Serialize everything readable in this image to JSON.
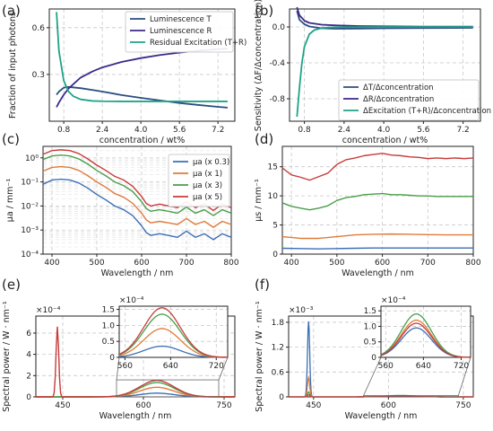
{
  "figure": {
    "panels": [
      "(a)",
      "(b)",
      "(c)",
      "(d)",
      "(e)",
      "(f)"
    ]
  },
  "chart_data": [
    {
      "id": "a",
      "type": "line",
      "xlabel": "concentration / wt%",
      "ylabel": "Fraction of input photons",
      "xlim": [
        0.2,
        7.9
      ],
      "ylim": [
        0,
        0.72
      ],
      "xticks": [
        "0.8",
        "2.4",
        "4.0",
        "5.6",
        "7.2"
      ],
      "yticks": [
        "0.3",
        "0.6"
      ],
      "grid": true,
      "legend": "top-right",
      "series": [
        {
          "name": "Luminescence T",
          "color": "#2a4e80",
          "x": [
            0.5,
            0.6,
            0.8,
            1.0,
            1.5,
            2.0,
            2.4,
            3.2,
            4.0,
            4.8,
            5.6,
            6.4,
            7.2,
            7.6
          ],
          "y": [
            0.17,
            0.19,
            0.215,
            0.22,
            0.212,
            0.2,
            0.19,
            0.168,
            0.15,
            0.133,
            0.117,
            0.104,
            0.092,
            0.087
          ]
        },
        {
          "name": "Luminescence R",
          "color": "#3b2a8a",
          "x": [
            0.5,
            0.6,
            0.8,
            1.0,
            1.5,
            2.0,
            2.4,
            3.2,
            4.0,
            4.8,
            5.6,
            6.4,
            7.2,
            7.6
          ],
          "y": [
            0.09,
            0.12,
            0.17,
            0.21,
            0.28,
            0.32,
            0.345,
            0.38,
            0.405,
            0.425,
            0.44,
            0.452,
            0.462,
            0.466
          ]
        },
        {
          "name": "Residual Excitation (T+R)",
          "color": "#1fa386",
          "x": [
            0.5,
            0.6,
            0.8,
            1.0,
            1.2,
            1.5,
            2.0,
            2.4,
            3.2,
            4.0,
            5.6,
            7.2,
            7.6
          ],
          "y": [
            0.7,
            0.45,
            0.26,
            0.19,
            0.16,
            0.14,
            0.13,
            0.128,
            0.127,
            0.127,
            0.127,
            0.127,
            0.127
          ]
        }
      ]
    },
    {
      "id": "b",
      "type": "line",
      "xlabel": "concentration / wt%",
      "ylabel": "Sensitivity (ΔF/Δconcentration)",
      "xlim": [
        0.2,
        7.9
      ],
      "ylim": [
        -1.05,
        0.2
      ],
      "xticks": [
        "0.8",
        "2.4",
        "4.0",
        "5.6",
        "7.2"
      ],
      "yticks": [
        "-0.8",
        "-0.4",
        "0.0"
      ],
      "grid": true,
      "legend": "bottom-right",
      "series": [
        {
          "name": "ΔT/Δconcentration",
          "color": "#2a4e80",
          "x": [
            0.5,
            0.6,
            0.8,
            1.0,
            1.5,
            2.0,
            3.0,
            4.0,
            5.6,
            7.6
          ],
          "y": [
            0.18,
            0.08,
            0.03,
            0.005,
            -0.015,
            -0.02,
            -0.018,
            -0.015,
            -0.012,
            -0.01
          ]
        },
        {
          "name": "ΔR/Δconcentration",
          "color": "#3b2a8a",
          "x": [
            0.5,
            0.6,
            0.8,
            1.0,
            1.5,
            2.0,
            3.0,
            4.0,
            5.6,
            7.6
          ],
          "y": [
            0.22,
            0.13,
            0.07,
            0.045,
            0.025,
            0.018,
            0.01,
            0.007,
            0.004,
            0.003
          ]
        },
        {
          "name": "ΔExcitation (T+R)/Δconcentration",
          "color": "#1fa386",
          "x": [
            0.5,
            0.6,
            0.7,
            0.8,
            1.0,
            1.2,
            1.5,
            2.0,
            2.4,
            3.0,
            4.0,
            5.6,
            7.6
          ],
          "y": [
            -1.0,
            -0.68,
            -0.4,
            -0.22,
            -0.08,
            -0.035,
            -0.012,
            -0.004,
            -0.002,
            -0.001,
            0.0,
            0.0,
            0.0
          ]
        }
      ]
    },
    {
      "id": "c",
      "type": "line",
      "xlabel": "Wavelength / nm",
      "ylabel": "μa / mm⁻¹",
      "yscale": "log",
      "xlim": [
        380,
        800
      ],
      "ylim": [
        0.0001,
        3
      ],
      "xticks": [
        "400",
        "500",
        "600",
        "700",
        "800"
      ],
      "yticks": [
        "10⁻⁴",
        "10⁻³",
        "10⁻²",
        "10⁻¹",
        "10⁰"
      ],
      "grid": true,
      "legend": "top-right",
      "series": [
        {
          "name": "μa (x 0.3)",
          "color": "#3b6fb6",
          "x": [
            380,
            400,
            420,
            440,
            460,
            480,
            500,
            520,
            540,
            560,
            580,
            600,
            610,
            620,
            640,
            660,
            680,
            700,
            720,
            740,
            760,
            780,
            800
          ],
          "y": [
            0.08,
            0.12,
            0.13,
            0.12,
            0.09,
            0.055,
            0.03,
            0.018,
            0.01,
            0.007,
            0.004,
            0.0015,
            0.0008,
            0.0006,
            0.0007,
            0.0006,
            0.0005,
            0.0009,
            0.0005,
            0.0007,
            0.0004,
            0.0007,
            0.0005
          ]
        },
        {
          "name": "μa (x 1)",
          "color": "#e07b39",
          "x": [
            380,
            400,
            420,
            440,
            460,
            480,
            500,
            520,
            540,
            560,
            580,
            600,
            610,
            620,
            640,
            660,
            680,
            700,
            720,
            740,
            760,
            780,
            800
          ],
          "y": [
            0.28,
            0.4,
            0.43,
            0.4,
            0.3,
            0.18,
            0.1,
            0.06,
            0.033,
            0.023,
            0.013,
            0.005,
            0.0027,
            0.002,
            0.0023,
            0.002,
            0.0017,
            0.003,
            0.0017,
            0.0023,
            0.0013,
            0.0023,
            0.0017
          ]
        },
        {
          "name": "μa (x 3)",
          "color": "#4a9e4a",
          "x": [
            380,
            400,
            420,
            440,
            460,
            480,
            500,
            520,
            540,
            560,
            580,
            600,
            610,
            620,
            640,
            660,
            680,
            700,
            720,
            740,
            760,
            780,
            800
          ],
          "y": [
            0.85,
            1.2,
            1.3,
            1.2,
            0.9,
            0.55,
            0.3,
            0.18,
            0.1,
            0.07,
            0.04,
            0.015,
            0.008,
            0.006,
            0.007,
            0.006,
            0.005,
            0.009,
            0.005,
            0.007,
            0.004,
            0.007,
            0.005
          ]
        },
        {
          "name": "μa (x 5)",
          "color": "#c83b3b",
          "x": [
            380,
            400,
            420,
            440,
            460,
            480,
            500,
            520,
            540,
            560,
            580,
            600,
            610,
            620,
            640,
            660,
            680,
            700,
            720,
            740,
            760,
            780,
            800
          ],
          "y": [
            1.4,
            2.0,
            2.15,
            2.0,
            1.5,
            0.9,
            0.5,
            0.3,
            0.17,
            0.12,
            0.066,
            0.025,
            0.013,
            0.01,
            0.012,
            0.01,
            0.0085,
            0.015,
            0.0085,
            0.012,
            0.0065,
            0.012,
            0.0085
          ]
        }
      ]
    },
    {
      "id": "d",
      "type": "line",
      "xlabel": "Wavelength / nm",
      "ylabel": "μs / mm⁻¹",
      "xlim": [
        380,
        800
      ],
      "ylim": [
        0,
        18.5
      ],
      "xticks": [
        "400",
        "500",
        "600",
        "700",
        "800"
      ],
      "yticks": [
        "0",
        "5",
        "10",
        "15"
      ],
      "grid": true,
      "series": [
        {
          "name": "",
          "color": "#3b6fb6",
          "x": [
            380,
            420,
            460,
            500,
            540,
            580,
            620,
            660,
            700,
            740,
            780,
            800
          ],
          "y": [
            1.0,
            0.95,
            0.9,
            0.95,
            1.0,
            1.05,
            1.05,
            1.05,
            1.05,
            1.05,
            1.05,
            1.05
          ]
        },
        {
          "name": "",
          "color": "#e07b39",
          "x": [
            380,
            420,
            460,
            500,
            540,
            580,
            620,
            660,
            700,
            740,
            780,
            800
          ],
          "y": [
            3.0,
            2.7,
            2.7,
            3.0,
            3.3,
            3.4,
            3.45,
            3.4,
            3.35,
            3.3,
            3.3,
            3.3
          ]
        },
        {
          "name": "",
          "color": "#4a9e4a",
          "x": [
            380,
            400,
            420,
            440,
            460,
            480,
            500,
            520,
            540,
            560,
            580,
            600,
            620,
            640,
            660,
            680,
            700,
            720,
            740,
            760,
            780,
            800
          ],
          "y": [
            8.8,
            8.2,
            7.9,
            7.6,
            7.9,
            8.3,
            9.2,
            9.7,
            9.9,
            10.2,
            10.3,
            10.4,
            10.2,
            10.2,
            10.1,
            10.0,
            10.0,
            9.9,
            9.9,
            9.9,
            9.9,
            9.9
          ]
        },
        {
          "name": "",
          "color": "#c83b3b",
          "x": [
            380,
            400,
            420,
            440,
            460,
            480,
            500,
            520,
            540,
            560,
            580,
            600,
            620,
            640,
            660,
            680,
            700,
            720,
            740,
            760,
            780,
            800
          ],
          "y": [
            14.8,
            13.6,
            13.2,
            12.7,
            13.3,
            13.9,
            15.4,
            16.2,
            16.5,
            16.9,
            17.1,
            17.3,
            17.0,
            16.9,
            16.7,
            16.6,
            16.4,
            16.5,
            16.4,
            16.5,
            16.4,
            16.5
          ]
        }
      ]
    },
    {
      "id": "e",
      "type": "line",
      "xlabel": "Wavelength / nm",
      "ylabel": "Spectral power / W · nm⁻¹",
      "xlim": [
        400,
        770
      ],
      "ylim": [
        0,
        7.6
      ],
      "yexponent": "×10⁻⁴",
      "xticks": [
        "450",
        "600",
        "750"
      ],
      "yticks": [
        "0",
        "2",
        "4",
        "6"
      ],
      "grid": true,
      "excitation_peak": {
        "x": 440,
        "height": 6.6
      },
      "series": [
        {
          "name": "",
          "color": "#3b6fb6",
          "peak_x": 625,
          "peak": 0.35
        },
        {
          "name": "",
          "color": "#e07b39",
          "peak_x": 625,
          "peak": 0.9
        },
        {
          "name": "",
          "color": "#4a9e4a",
          "peak_x": 625,
          "peak": 1.35
        },
        {
          "name": "",
          "color": "#c83b3b",
          "peak_x": 625,
          "peak": 1.55
        }
      ],
      "inset": {
        "xlim": [
          550,
          740
        ],
        "ylim": [
          0,
          1.6
        ],
        "yexponent": "×10⁻⁴",
        "xticks": [
          "560",
          "640",
          "720"
        ],
        "yticks": [
          "0",
          "0.5",
          "1.0",
          "1.5"
        ]
      }
    },
    {
      "id": "f",
      "type": "line",
      "xlabel": "Wavelength / nm",
      "ylabel": "Spectral power / W · nm⁻¹",
      "xlim": [
        400,
        770
      ],
      "ylim": [
        0,
        1.95
      ],
      "yexponent": "×10⁻³",
      "xticks": [
        "450",
        "600",
        "750"
      ],
      "yticks": [
        "0",
        "0.6",
        "1.2",
        "1.8"
      ],
      "grid": true,
      "excitation_peaks": [
        {
          "color": "#3b6fb6",
          "height": 1.82
        },
        {
          "color": "#e07b39",
          "height": 0.47
        },
        {
          "color": "#4a9e4a",
          "height": 0.12
        },
        {
          "color": "#c83b3b",
          "height": 0.05
        }
      ],
      "excitation_x": 440,
      "series": [
        {
          "name": "",
          "color": "#3b6fb6",
          "peak_x": 625,
          "peak": 0.95
        },
        {
          "name": "",
          "color": "#e07b39",
          "peak_x": 625,
          "peak": 1.2
        },
        {
          "name": "",
          "color": "#4a9e4a",
          "peak_x": 625,
          "peak": 1.4
        },
        {
          "name": "",
          "color": "#c83b3b",
          "peak_x": 625,
          "peak": 1.1
        }
      ],
      "inset": {
        "xlim": [
          550,
          740
        ],
        "ylim": [
          0,
          1.65
        ],
        "yexponent": "×10⁻⁴",
        "xticks": [
          "560",
          "640",
          "720"
        ],
        "yticks": [
          "0",
          "0.5",
          "1.0",
          "1.5"
        ]
      }
    }
  ]
}
